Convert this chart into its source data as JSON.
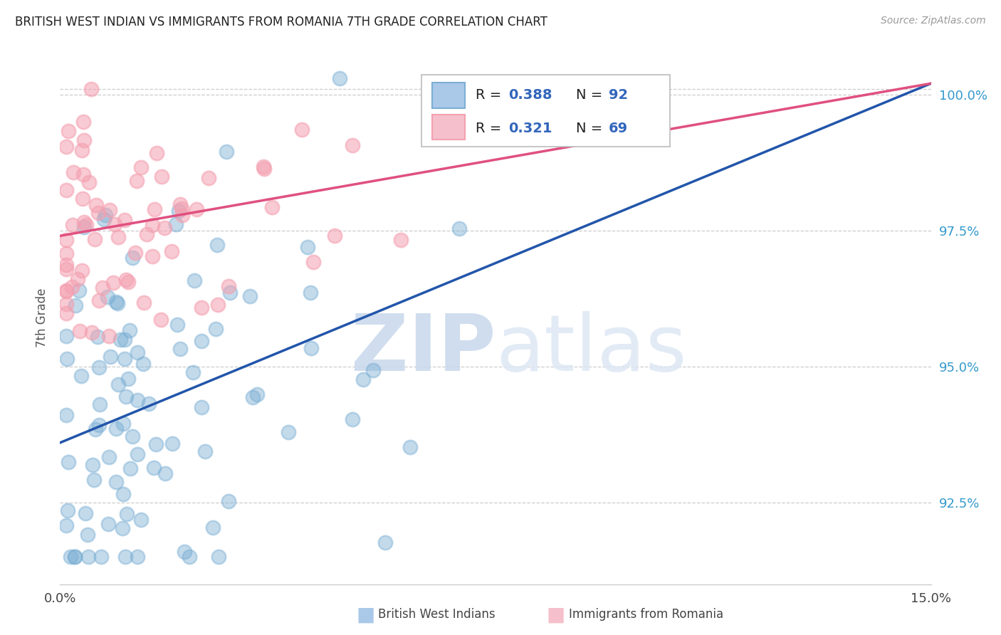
{
  "title": "BRITISH WEST INDIAN VS IMMIGRANTS FROM ROMANIA 7TH GRADE CORRELATION CHART",
  "source": "Source: ZipAtlas.com",
  "ylabel_label": "7th Grade",
  "ytick_labels": [
    "92.5%",
    "95.0%",
    "97.5%",
    "100.0%"
  ],
  "ytick_values": [
    0.925,
    0.95,
    0.975,
    1.0
  ],
  "xmin": 0.0,
  "xmax": 0.15,
  "ymin": 0.91,
  "ymax": 1.008,
  "color_blue": "#7BAFD4",
  "color_pink": "#F4A0B0",
  "color_blue_line": "#2255AA",
  "color_pink_line": "#E05080",
  "watermark_zip": "ZIP",
  "watermark_atlas": "atlas",
  "blue_line_x0": 0.0,
  "blue_line_y0": 0.936,
  "blue_line_x1": 0.15,
  "blue_line_y1": 1.002,
  "pink_line_x0": 0.0,
  "pink_line_y0": 0.974,
  "pink_line_x1": 0.15,
  "pink_line_y1": 1.002,
  "legend_r1": "0.388",
  "legend_n1": "92",
  "legend_r2": "0.321",
  "legend_n2": "69"
}
